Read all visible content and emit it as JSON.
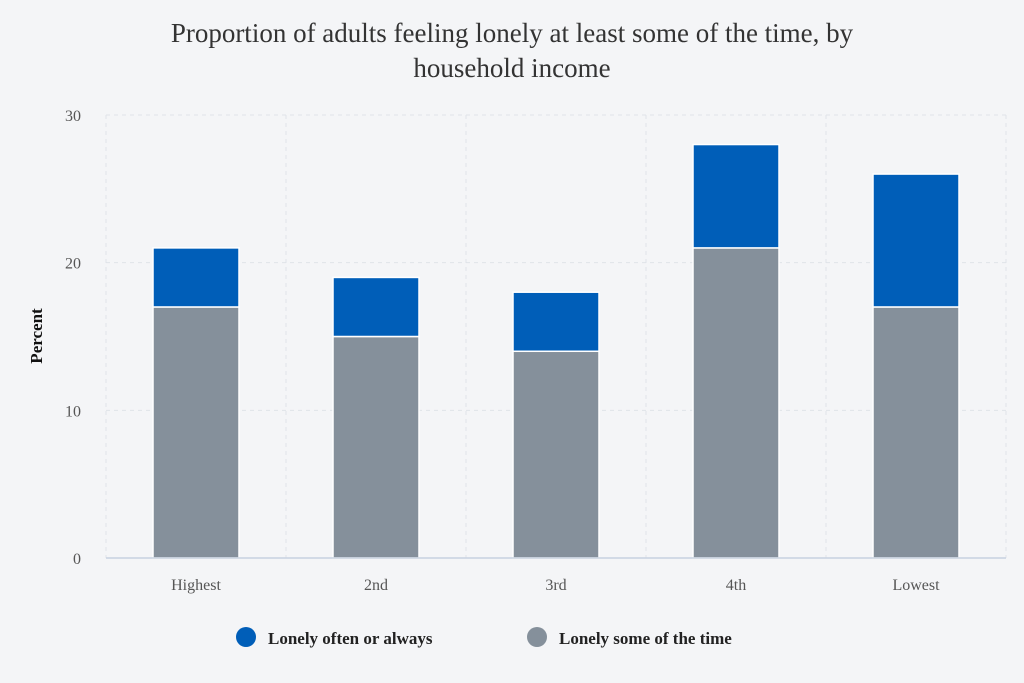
{
  "chart_data": {
    "type": "bar",
    "stacked": true,
    "title": "Proportion of adults feeling lonely at least some of the time, by household income",
    "title_lines": [
      "Proportion of adults feeling lonely at least some of the time, by",
      "household income"
    ],
    "xlabel": "",
    "ylabel": "Percent",
    "ylim": [
      0,
      30
    ],
    "yticks": [
      0,
      10,
      20,
      30
    ],
    "grid": true,
    "legend_position": "bottom",
    "categories": [
      "Highest",
      "2nd",
      "3rd",
      "4th",
      "Lowest"
    ],
    "series": [
      {
        "name": "Lonely some of the time",
        "color": "#85909b",
        "values": [
          17,
          15,
          14,
          21,
          17
        ]
      },
      {
        "name": "Lonely often or always",
        "color": "#005eb8",
        "values": [
          4,
          4,
          4,
          7,
          9
        ]
      }
    ],
    "legend_order": [
      "Lonely often or always",
      "Lonely some of the time"
    ]
  }
}
